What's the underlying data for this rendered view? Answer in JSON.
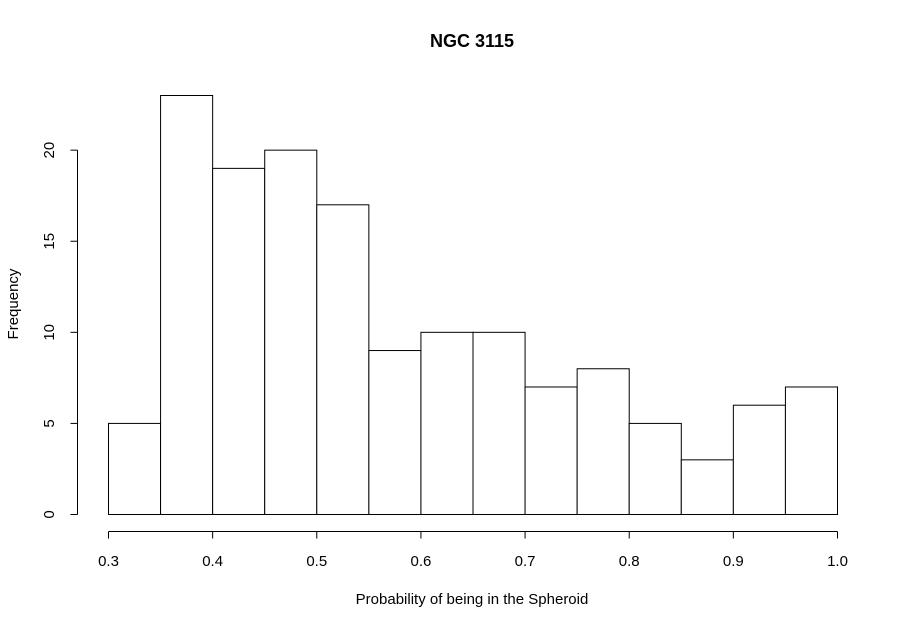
{
  "chart_data": {
    "type": "bar",
    "title": "NGC 3115",
    "xlabel": "Probability of being in the Spheroid",
    "ylabel": "Frequency",
    "bin_edges": [
      0.3,
      0.35,
      0.4,
      0.45,
      0.5,
      0.55,
      0.6,
      0.65,
      0.7,
      0.75,
      0.8,
      0.85,
      0.9,
      0.95,
      1.0
    ],
    "values": [
      5,
      23,
      19,
      20,
      17,
      9,
      10,
      10,
      7,
      8,
      5,
      3,
      6,
      7
    ],
    "xlim": [
      0.3,
      1.0
    ],
    "ylim": [
      0,
      23
    ],
    "x_ticks": [
      "0.3",
      "0.4",
      "0.5",
      "0.6",
      "0.7",
      "0.8",
      "0.9",
      "1.0"
    ],
    "y_ticks": [
      "0",
      "5",
      "10",
      "15",
      "20"
    ],
    "grid": false,
    "colors": {
      "bar_fill": "#ffffff",
      "bar_stroke": "#000000"
    }
  }
}
